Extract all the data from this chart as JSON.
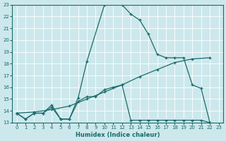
{
  "xlabel": "Humidex (Indice chaleur)",
  "ylabel": "",
  "bg_color": "#cce8ec",
  "grid_color": "#ffffff",
  "line_color": "#1a6b6b",
  "xlim": [
    -0.5,
    23.5
  ],
  "ylim": [
    13,
    23
  ],
  "xticks": [
    0,
    1,
    2,
    3,
    4,
    5,
    6,
    7,
    8,
    9,
    10,
    11,
    12,
    13,
    14,
    15,
    16,
    17,
    18,
    19,
    20,
    21,
    22,
    23
  ],
  "yticks": [
    13,
    14,
    15,
    16,
    17,
    18,
    19,
    20,
    21,
    22,
    23
  ],
  "line1_x": [
    0,
    1,
    2,
    3,
    4,
    5,
    6,
    7,
    8,
    10,
    11,
    12,
    13,
    14,
    15,
    16,
    17,
    18,
    19,
    20,
    21,
    22
  ],
  "line1_y": [
    13.8,
    13.3,
    13.8,
    13.8,
    14.5,
    13.3,
    13.3,
    15.1,
    18.2,
    23.0,
    23.2,
    23.0,
    22.2,
    21.7,
    20.5,
    18.8,
    18.5,
    18.5,
    18.5,
    16.2,
    15.9,
    13.0
  ],
  "line2_x": [
    0,
    1,
    2,
    3,
    4,
    5,
    6,
    7,
    8,
    9,
    10,
    11,
    12,
    13,
    14,
    15,
    16,
    17,
    18,
    19,
    20,
    21,
    22
  ],
  "line2_y": [
    13.8,
    13.3,
    13.8,
    13.8,
    14.3,
    13.3,
    13.3,
    14.8,
    15.2,
    15.2,
    15.8,
    16.0,
    16.2,
    13.2,
    13.2,
    13.2,
    13.2,
    13.2,
    13.2,
    13.2,
    13.2,
    13.2,
    13.0
  ],
  "line3_x": [
    0,
    2,
    4,
    6,
    8,
    10,
    12,
    14,
    16,
    18,
    20,
    22
  ],
  "line3_y": [
    13.8,
    13.9,
    14.1,
    14.4,
    15.0,
    15.6,
    16.2,
    16.9,
    17.5,
    18.1,
    18.4,
    18.5
  ],
  "xlabel_fontsize": 6,
  "tick_fontsize": 5
}
